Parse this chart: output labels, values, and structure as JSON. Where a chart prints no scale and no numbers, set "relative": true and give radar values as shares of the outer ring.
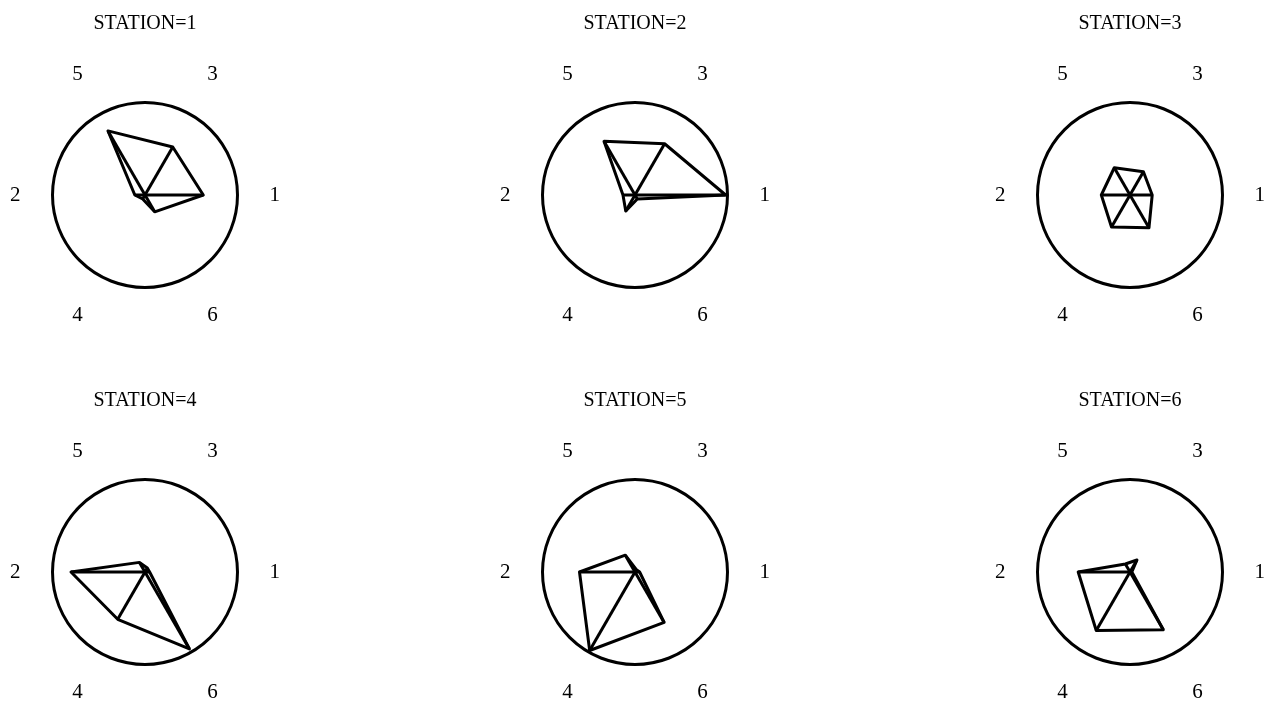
{
  "chart_data": [
    {
      "type": "radar",
      "title": "STATION=1",
      "categories": [
        "3",
        "1",
        "6",
        "4",
        "2",
        "5"
      ],
      "relative": true,
      "grid": true,
      "marker": "none",
      "series": [
        {
          "color": "#000000",
          "values": [
            0.6,
            0.63,
            0.21,
            0.05,
            0.11,
            0.8
          ]
        }
      ]
    },
    {
      "type": "radar",
      "title": "STATION=2",
      "categories": [
        "3",
        "1",
        "6",
        "4",
        "2",
        "5"
      ],
      "relative": true,
      "grid": true,
      "marker": "none",
      "series": [
        {
          "color": "#000000",
          "values": [
            0.64,
            0.98,
            0.05,
            0.2,
            0.13,
            0.67
          ]
        }
      ]
    },
    {
      "type": "radar",
      "title": "STATION=3",
      "categories": [
        "3",
        "1",
        "6",
        "4",
        "2",
        "5"
      ],
      "relative": true,
      "grid": true,
      "marker": "none",
      "series": [
        {
          "color": "#000000",
          "values": [
            0.29,
            0.24,
            0.41,
            0.4,
            0.31,
            0.34
          ]
        }
      ]
    },
    {
      "type": "radar",
      "title": "STATION=4",
      "categories": [
        "3",
        "1",
        "6",
        "4",
        "2",
        "5"
      ],
      "relative": true,
      "grid": true,
      "marker": "none",
      "series": [
        {
          "color": "#000000",
          "values": [
            0.05,
            0.05,
            0.96,
            0.59,
            0.8,
            0.12
          ]
        }
      ]
    },
    {
      "type": "radar",
      "title": "STATION=5",
      "categories": [
        "3",
        "1",
        "6",
        "4",
        "2",
        "5"
      ],
      "relative": true,
      "grid": true,
      "marker": "none",
      "series": [
        {
          "color": "#000000",
          "values": [
            0.03,
            0.05,
            0.63,
            0.98,
            0.6,
            0.21
          ]
        }
      ]
    },
    {
      "type": "radar",
      "title": "STATION=6",
      "categories": [
        "3",
        "1",
        "6",
        "4",
        "2",
        "5"
      ],
      "relative": true,
      "grid": true,
      "marker": "none",
      "series": [
        {
          "color": "#000000",
          "values": [
            0.15,
            0.02,
            0.72,
            0.73,
            0.56,
            0.1
          ]
        }
      ]
    }
  ]
}
